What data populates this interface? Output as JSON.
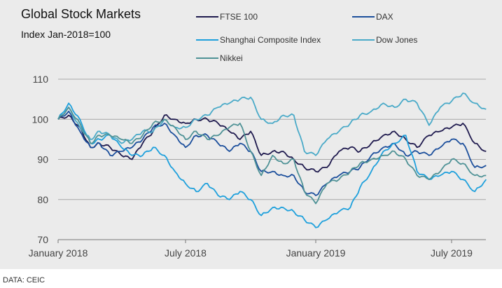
{
  "chart_data": {
    "type": "line",
    "title": "Global Stock Markets",
    "subtitle": "Index Jan-2018=100",
    "source": "DATA: CEIC",
    "ylim": [
      70,
      110
    ],
    "yticks": [
      "70",
      "80",
      "90",
      "100",
      "110"
    ],
    "xticks": [
      {
        "date": "2018-01-01",
        "label": "January 2018"
      },
      {
        "date": "2018-07-01",
        "label": "July 2018"
      },
      {
        "date": "2019-01-01",
        "label": "January 2019"
      },
      {
        "date": "2019-07-01",
        "label": "July 2019"
      }
    ],
    "xlim": [
      "2018-01-01",
      "2019-08-20"
    ],
    "grid": "horizontal",
    "legend": "top-right",
    "x": [
      "2018-01-01",
      "2018-01-16",
      "2018-02-01",
      "2018-02-16",
      "2018-03-01",
      "2018-03-16",
      "2018-04-01",
      "2018-04-16",
      "2018-05-01",
      "2018-05-16",
      "2018-06-01",
      "2018-06-16",
      "2018-07-01",
      "2018-07-16",
      "2018-08-01",
      "2018-08-16",
      "2018-09-01",
      "2018-09-16",
      "2018-10-01",
      "2018-10-16",
      "2018-11-01",
      "2018-11-16",
      "2018-12-01",
      "2018-12-16",
      "2019-01-01",
      "2019-01-16",
      "2019-02-01",
      "2019-02-16",
      "2019-03-01",
      "2019-03-16",
      "2019-04-01",
      "2019-04-16",
      "2019-05-01",
      "2019-05-16",
      "2019-06-01",
      "2019-06-16",
      "2019-07-01",
      "2019-07-16",
      "2019-08-01",
      "2019-08-16"
    ],
    "series": [
      {
        "name": "FTSE 100",
        "color": "#1f1a4e",
        "values": [
          100,
          101,
          98,
          93,
          94,
          93,
          91,
          90,
          94,
          97,
          101,
          100,
          99,
          100,
          100,
          99,
          97,
          95,
          97,
          91,
          92,
          92,
          90,
          88,
          87,
          88,
          92,
          93,
          92,
          94,
          96,
          97,
          95,
          93,
          96,
          97,
          98,
          99,
          94,
          92
        ]
      },
      {
        "name": "DAX",
        "color": "#1c4f9c",
        "values": [
          100,
          102,
          97,
          93,
          94,
          91,
          92,
          93,
          95,
          98,
          99,
          96,
          93,
          96,
          96,
          94,
          92,
          94,
          92,
          87,
          87,
          86,
          86,
          82,
          81,
          84,
          86,
          87,
          88,
          91,
          93,
          94,
          91,
          92,
          91,
          93,
          95,
          94,
          88,
          88.5
        ]
      },
      {
        "name": "Shanghai Composite Index",
        "color": "#1ea0dc",
        "values": [
          100,
          104,
          100,
          94,
          95,
          96,
          93,
          91,
          91,
          93,
          91,
          87,
          84,
          82,
          84,
          81,
          80,
          82,
          80,
          76,
          78,
          78,
          77,
          75,
          73,
          75,
          77,
          78,
          83,
          87,
          92,
          94,
          96,
          87,
          85,
          86,
          87,
          85,
          82,
          85
        ]
      },
      {
        "name": "Dow Jones",
        "color": "#4aaac8",
        "values": [
          100,
          103,
          98,
          95,
          97,
          96,
          94,
          95,
          97,
          97,
          100,
          98,
          98,
          100,
          101,
          103,
          104,
          105,
          105.5,
          100,
          99,
          101,
          101,
          92,
          91,
          95,
          97,
          99,
          101,
          102,
          104,
          103,
          105,
          104,
          98.5,
          103,
          104.5,
          106.5,
          104,
          102.5
        ]
      },
      {
        "name": "Nikkei",
        "color": "#4f9296",
        "values": [
          100,
          103,
          99,
          94,
          96,
          96,
          95,
          94,
          96,
          99,
          100,
          98,
          95,
          97,
          95,
          96,
          98,
          99,
          92,
          86,
          91,
          89,
          90,
          82,
          79,
          84,
          85,
          87,
          89,
          90,
          91,
          92,
          90,
          86,
          85,
          87,
          90,
          89,
          86,
          86
        ]
      }
    ]
  }
}
